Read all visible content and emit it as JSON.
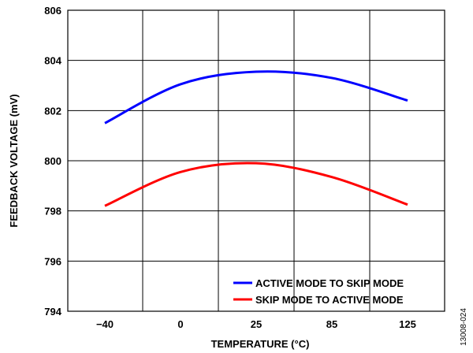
{
  "chart_data": {
    "type": "line",
    "xlabel": "TEMPERATURE (°C)",
    "ylabel": "FEEDBACK VOLTAGE (mV)",
    "x_tick_labels": [
      "−40",
      "0",
      "25",
      "85",
      "125"
    ],
    "y_ticks": [
      794,
      796,
      798,
      800,
      802,
      804,
      806
    ],
    "ylim": [
      794,
      806
    ],
    "grid": true,
    "legend_position": "bottom-right",
    "series": [
      {
        "name": "ACTIVE MODE TO SKIP MODE",
        "color": "#0000ff",
        "values": [
          801.5,
          803.05,
          803.55,
          803.3,
          802.4
        ]
      },
      {
        "name": "SKIP MODE TO ACTIVE MODE",
        "color": "#ff0000",
        "values": [
          798.2,
          799.55,
          799.9,
          799.35,
          798.25
        ]
      }
    ]
  },
  "figure_id": "13008-024"
}
